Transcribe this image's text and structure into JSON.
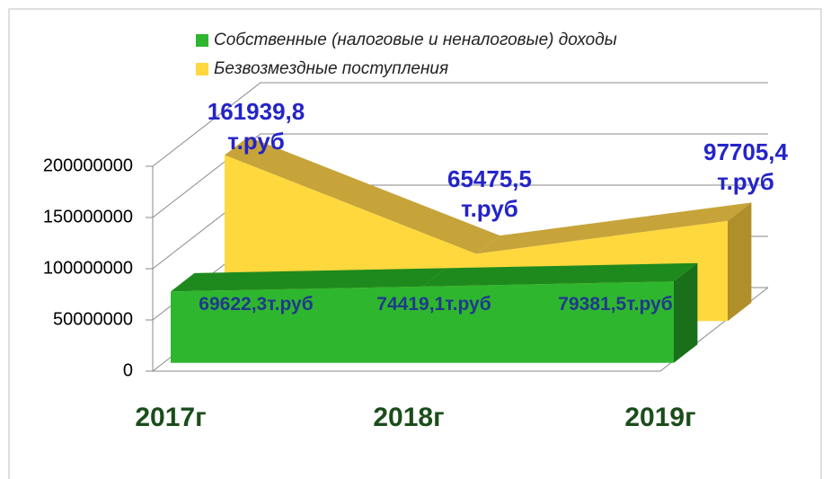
{
  "chart_data": {
    "type": "area3d",
    "categories": [
      "2017г",
      "2018г",
      "2019г"
    ],
    "series": [
      {
        "name": "Собственные (налоговые и неналоговые) доходы",
        "color": "#2fb62f",
        "values": [
          69622300,
          74419100,
          79381500
        ],
        "value_labels": [
          "69622,3т.руб",
          "74419,1т.руб",
          "79381,5т.руб"
        ]
      },
      {
        "name": "Безвозмездные поступления",
        "color": "#ffd83d",
        "values": [
          161939800,
          65475500,
          97705400
        ],
        "value_labels": [
          "161939,8 т.руб",
          "65475,5 т.руб",
          "97705,4 т.руб"
        ]
      }
    ],
    "ylim": [
      0,
      200000000
    ],
    "yticks": [
      0,
      50000000,
      100000000,
      150000000,
      200000000
    ],
    "grid": true
  }
}
